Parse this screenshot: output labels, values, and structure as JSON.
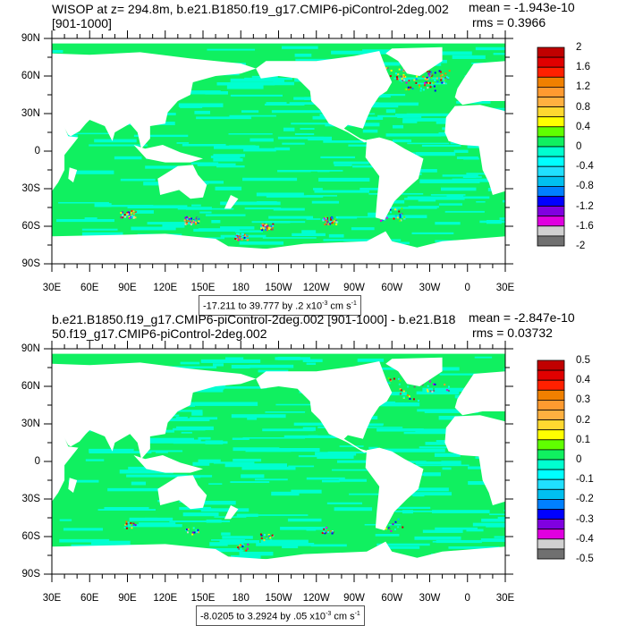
{
  "panels": [
    {
      "title": "WISOP at z= 294.8m, b.e21.B1850.f19_g17.CMIP6-piControl-2deg.002 [901-1000]",
      "mean": "mean = -1.943e-10",
      "rms": "rms = 0.3966",
      "info": {
        "range": "-17.211 to 39.777 by .2 x10",
        "exp": "-3",
        "unit": " cm s",
        "unit_exp": "-1"
      },
      "colorbar_labels": [
        "2",
        "1.6",
        "1.2",
        "0.8",
        "0.4",
        "0",
        "-0.4",
        "-0.8",
        "-1.2",
        "-1.6",
        "-2"
      ],
      "noise": 1.0
    },
    {
      "title": "b.e21.B1850.f19_g17.CMIP6-piControl-2deg.002 [901-1000] - b.e21.B1850.f19_g17.CMIP6-piControl-2deg.002",
      "mean": "mean = -2.847e-10",
      "rms": "rms = 0.03732",
      "info": {
        "range": "-8.0205 to 3.2924 by .05 x10",
        "exp": "-3",
        "unit": " cm s",
        "unit_exp": "-1"
      },
      "colorbar_labels": [
        "0.5",
        "0.4",
        "0.3",
        "0.2",
        "0.1",
        "0",
        "-0.1",
        "-0.2",
        "-0.3",
        "-0.4",
        "-0.5"
      ],
      "noise": 0.35
    }
  ],
  "lat_labels": [
    "90N",
    "60N",
    "30N",
    "0",
    "30S",
    "60S",
    "90S"
  ],
  "lon_labels": [
    "30E",
    "60E",
    "90E",
    "120E",
    "150E",
    "180",
    "150W",
    "120W",
    "90W",
    "60W",
    "30W",
    "0",
    "30E"
  ],
  "colorbar_colors": [
    "#c00000",
    "#e00000",
    "#ff2000",
    "#f08000",
    "#ff9a30",
    "#ffb040",
    "#ffd830",
    "#ffff00",
    "#60ff00",
    "#10f060",
    "#00ffd0",
    "#00ffff",
    "#20e0ff",
    "#00c0f0",
    "#0080ff",
    "#0000ff",
    "#8000e0",
    "#e000e0",
    "#d0d0d0",
    "#707070"
  ]
}
